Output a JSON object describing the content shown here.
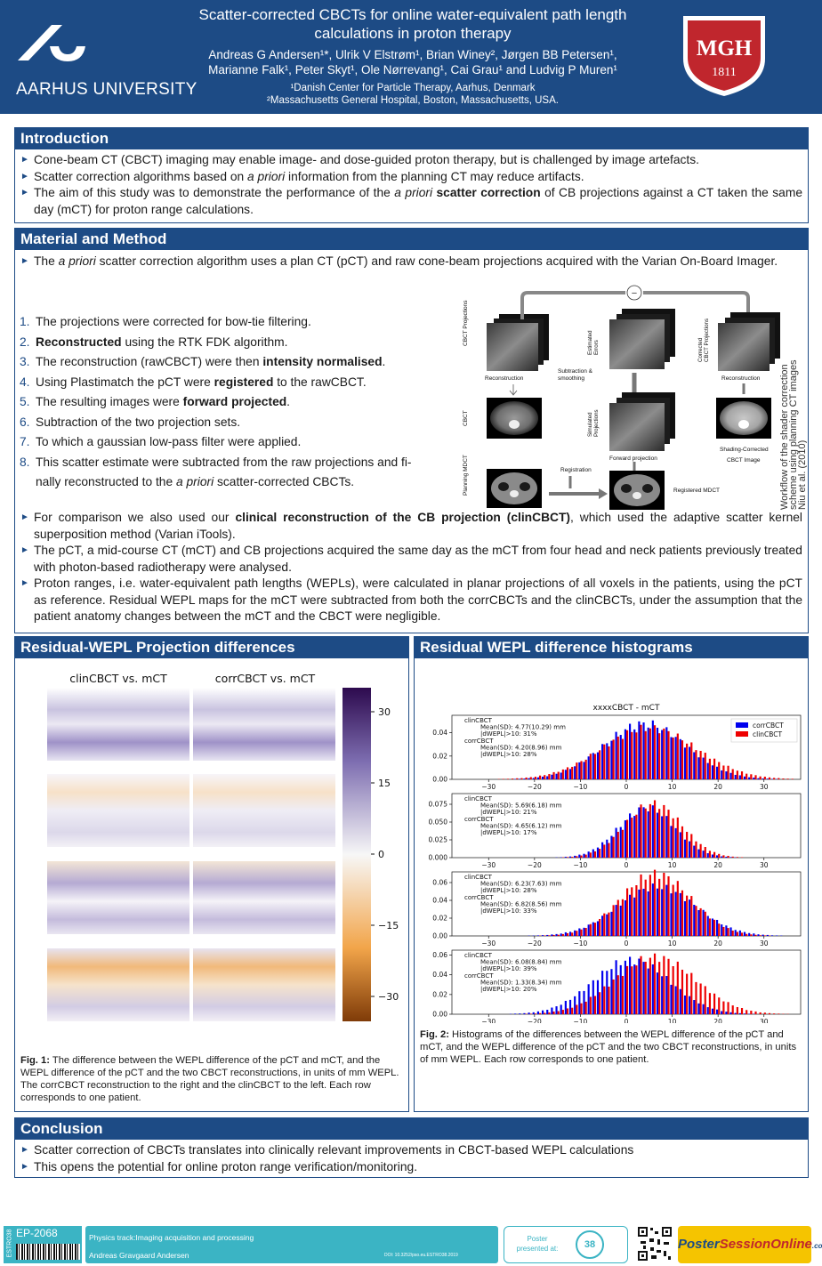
{
  "header": {
    "university": "AARHUS UNIVERSITY",
    "title_line1": "Scatter-corrected CBCTs for online water-equivalent path length",
    "title_line2": "calculations in proton therapy",
    "authors_line1": "Andreas G Andersen¹*, Ulrik V Elstrøm¹, Brian Winey², Jørgen BB Petersen¹,",
    "authors_line2": "Marianne Falk¹, Peter Skyt¹, Ole Nørrevang¹, Cai Grau¹ and Ludvig P Muren¹",
    "affiliation1": "¹Danish Center for Particle Therapy, Aarhus, Denmark",
    "affiliation2": "²Massachusetts General Hospital, Boston, Massachusetts, USA.",
    "mgh_text": "MGH",
    "mgh_year": "1811"
  },
  "intro": {
    "heading": "Introduction",
    "b1": "Cone-beam CT (CBCT) imaging may enable image- and dose-guided proton therapy, but is challenged by image artefacts.",
    "b2_a": "Scatter correction algorithms based on ",
    "b2_em": "a priori",
    "b2_b": " information from the planning CT may reduce artifacts.",
    "b3_a": "The aim of this study was to demonstrate the performance of the ",
    "b3_em": "a priori",
    "b3_strong": " scatter correction",
    "b3_b": " of CB projections against a CT taken the same day (mCT) for proton range calculations."
  },
  "method": {
    "heading": "Material and Method",
    "b1_a": "The ",
    "b1_em": "a priori",
    "b1_b": " scatter correction algorithm uses a plan CT (pCT) and raw cone-beam projections acquired with the Varian On-Board Imager.",
    "steps": {
      "n1": "1.",
      "s1": "The projections were corrected for bow-tie filtering.",
      "n2": "2.",
      "s2_strong": "Reconstructed",
      "s2": " using the RTK FDK algorithm.",
      "n3": "3.",
      "s3": "The reconstruction (rawCBCT) were then ",
      "s3_strong": "intensity normalised",
      "s3_end": ".",
      "n4": "4.",
      "s4": "Using Plastimatch the pCT were ",
      "s4_strong": "registered",
      "s4_end": " to the rawCBCT.",
      "n5": "5.",
      "s5": "The resulting images were ",
      "s5_strong": "forward projected",
      "s5_end": ".",
      "n6": "6.",
      "s6": "Subtraction of the two projection sets.",
      "n7": "7.",
      "s7": "To which a gaussian low-pass filter were applied.",
      "n8": "8.",
      "s8_l1": "This scatter estimate were subtracted from the raw projections and fi-",
      "s8_l2": "nally reconstructed to the ",
      "s8_em": "a priori",
      "s8_end": " scatter-corrected CBCTs."
    },
    "workflow": {
      "caption": [
        "Workflow of the shader correction",
        "scheme using planning CT images",
        "Niu et al. (2010)"
      ],
      "row_cbct_proj": "CBCT Projections",
      "row_cbct": "CBCT",
      "row_planning": "Planning MDCT",
      "reconstruction": "Reconstruction",
      "sub_smooth": [
        "Subtraction &",
        "smoothing"
      ],
      "est_errors": [
        "Estimated",
        "Errors"
      ],
      "corrected_proj": [
        "Corrected",
        "CBCT Projections"
      ],
      "reconstruction2": "Reconstruction",
      "sim_proj": [
        "Simulated",
        "Projections"
      ],
      "forward_proj": "Forward projection",
      "shading": [
        "Shading-Corrected",
        "CBCT Image"
      ],
      "registration": "Registration",
      "registered": "Registered MDCT",
      "minus": "−"
    },
    "b2_a": "For comparison we also used our ",
    "b2_strong": "clinical reconstruction of the CB projection (clinCBCT)",
    "b2_b": ", which used the adaptive scatter kernel superposition method (Varian iTools).",
    "b3": "The pCT, a mid-course CT (mCT) and CB projections acquired the same day as the mCT from four head and neck patients previously treated with photon-based radiotherapy were analysed.",
    "b4": "Proton ranges, i.e.  water-equivalent path lengths (WEPLs), were calculated in planar projections of all voxels in the patients, using the pCT as reference.  Residual WEPL maps for the mCT were subtracted from both the corrCBCTs and the clinCBCTs, under the assumption that the patient anatomy changes between the mCT and the CBCT were negligible."
  },
  "projdiff": {
    "heading": "Residual-WEPL Projection differences",
    "col1": "clinCBCT vs. mCT",
    "col2": "corrCBCT vs. mCT",
    "cbar_ticks": [
      "30",
      "15",
      "0",
      "−15",
      "−30"
    ],
    "cap_label": "Fig. 1:",
    "cap_text": " The difference between the WEPL difference of the pCT and mCT, and the WEPL difference of the pCT and the two CBCT reconstructions, in units of mm WEPL. The corrCBCT reconstruction to the right and the clinCBCT to the left. Each row corresponds to one patient."
  },
  "hist": {
    "heading": "Residual WEPL difference histograms",
    "cap_label": "Fig. 2:",
    "cap_text": " Histograms of the differences between the WEPL difference of the pCT and mCT, and the WEPL difference of the pCT and the two CBCT reconstructions, in units of mm WEPL. Each row corresponds to one patient."
  },
  "chart_data": [
    {
      "type": "bar",
      "title": "xxxxCBCT - mCT",
      "xticks": [
        "−30",
        "−20",
        "−10",
        "0",
        "10",
        "20",
        "30"
      ],
      "yticks": [
        "0.00",
        "0.02",
        "0.04"
      ],
      "ylim": [
        0,
        0.055
      ],
      "legend": [
        "corrCBCT",
        "clinCBCT"
      ],
      "legend_position": "top-right",
      "colors": {
        "corrCBCT": "#0000ee",
        "clinCBCT": "#ee0000"
      },
      "annotation": [
        "clinCBCT",
        "Mean(SD): 4.77(10.29) mm",
        "|dWEPL|>10: 31%",
        "corrCBCT",
        "Mean(SD): 4.20(8.96) mm",
        "|dWEPL|>10: 28%"
      ],
      "series": [
        {
          "name": "corrCBCT",
          "mean": 4.2,
          "sd": 8.96,
          "peak": 0.048
        },
        {
          "name": "clinCBCT",
          "mean": 4.77,
          "sd": 10.29,
          "peak": 0.044
        }
      ]
    },
    {
      "type": "bar",
      "xticks": [
        "−30",
        "−20",
        "−10",
        "0",
        "10",
        "20",
        "30"
      ],
      "yticks": [
        "0.000",
        "0.025",
        "0.050",
        "0.075"
      ],
      "ylim": [
        0,
        0.09
      ],
      "annotation": [
        "clinCBCT",
        "Mean(SD): 5.69(6.18) mm",
        "|dWEPL|>10: 21%",
        "corrCBCT",
        "Mean(SD): 4.65(6.12) mm",
        "|dWEPL|>10: 17%"
      ],
      "series": [
        {
          "name": "corrCBCT",
          "mean": 4.65,
          "sd": 6.12,
          "peak": 0.07
        },
        {
          "name": "clinCBCT",
          "mean": 5.69,
          "sd": 6.18,
          "peak": 0.076
        }
      ]
    },
    {
      "type": "bar",
      "xticks": [
        "−30",
        "−20",
        "−10",
        "0",
        "10",
        "20",
        "30"
      ],
      "yticks": [
        "0.00",
        "0.02",
        "0.04",
        "0.06"
      ],
      "ylim": [
        0,
        0.072
      ],
      "annotation": [
        "clinCBCT",
        "Mean(SD): 6.23(7.63) mm",
        "|dWEPL|>10: 28%",
        "corrCBCT",
        "Mean(SD): 6.82(8.56) mm",
        "|dWEPL|>10: 33%"
      ],
      "series": [
        {
          "name": "corrCBCT",
          "mean": 6.82,
          "sd": 8.56,
          "peak": 0.055
        },
        {
          "name": "clinCBCT",
          "mean": 6.23,
          "sd": 7.63,
          "peak": 0.07
        }
      ]
    },
    {
      "type": "bar",
      "xticks": [
        "−30",
        "−20",
        "−10",
        "0",
        "10",
        "20",
        "30"
      ],
      "yticks": [
        "0.00",
        "0.02",
        "0.04",
        "0.06"
      ],
      "ylim": [
        0,
        0.065
      ],
      "annotation": [
        "clinCBCT",
        "Mean(SD): 6.08(8.84) mm",
        "|dWEPL|>10: 39%",
        "corrCBCT",
        "Mean(SD): 1.33(8.34) mm",
        "|dWEPL|>10: 20%"
      ],
      "series": [
        {
          "name": "corrCBCT",
          "mean": 1.33,
          "sd": 8.34,
          "peak": 0.055
        },
        {
          "name": "clinCBCT",
          "mean": 6.08,
          "sd": 8.84,
          "peak": 0.058
        }
      ]
    }
  ],
  "conclusion": {
    "heading": "Conclusion",
    "b1": "Scatter correction of CBCTs translates into clinically relevant improvements in CBCT-based WEPL calculations",
    "b2": "This opens the potential for online proton range verification/monitoring."
  },
  "footer": {
    "code": "EP-2068",
    "side": "ESTRO38",
    "track": "Physics track:Imaging acquisition and processing",
    "author": "Andreas Gravgaard Andersen",
    "doi": "DOI: 10.3252/pso.eu.ESTRO38.2019",
    "presented_l1": "Poster",
    "presented_l2": "presented at:",
    "estro_num": "38",
    "brand1": "Poster",
    "brand2": "SessionOnline",
    "brand3": ".com"
  },
  "colors": {
    "header_blue": "#1d4b85",
    "footer_teal": "#3bb4c4",
    "corr_blue": "#0000ee",
    "clin_red": "#ee0000"
  }
}
